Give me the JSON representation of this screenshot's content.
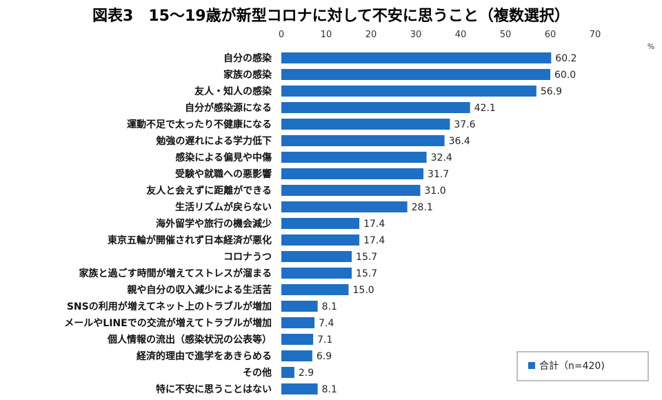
{
  "chart_data": {
    "type": "bar",
    "orientation": "horizontal",
    "title": "図表3　15〜19歳が新型コロナに対して不安に思うこと（複数選択）",
    "unit_label": "%",
    "xlim": [
      0,
      70
    ],
    "ticks": [
      0,
      10,
      20,
      30,
      40,
      50,
      60,
      70
    ],
    "grid": false,
    "legend": {
      "position": "bottom-right",
      "label": "合計（n=420)"
    },
    "bar_color": "#1f6fc4",
    "series": [
      {
        "name": "合計（n=420)",
        "values": [
          60.2,
          60.0,
          56.9,
          42.1,
          37.6,
          36.4,
          32.4,
          31.7,
          31.0,
          28.1,
          17.4,
          17.4,
          15.7,
          15.7,
          15.0,
          8.1,
          7.4,
          7.1,
          6.9,
          2.9,
          8.1
        ]
      }
    ],
    "categories": [
      "自分の感染",
      "家族の感染",
      "友人・知人の感染",
      "自分が感染源になる",
      "運動不足で太ったり不健康になる",
      "勉強の遅れによる学力低下",
      "感染による偏見や中傷",
      "受験や就職への悪影響",
      "友人と会えずに距離ができる",
      "生活リズムが戻らない",
      "海外留学や旅行の機会減少",
      "東京五輪が開催されず日本経済が悪化",
      "コロナうつ",
      "家族と過ごす時間が増えてストレスが溜まる",
      "親や自分の収入減少による生活苦",
      "SNSの利用が増えてネット上のトラブルが増加",
      "メールやLINEでの交流が増えてトラブルが増加",
      "個人情報の流出（感染状況の公表等）",
      "経済的理由で進学をあきらめる",
      "その他",
      "特に不安に思うことはない"
    ],
    "value_labels": [
      "60.2",
      "60.0",
      "56.9",
      "42.1",
      "37.6",
      "36.4",
      "32.4",
      "31.7",
      "31.0",
      "28.1",
      "17.4",
      "17.4",
      "15.7",
      "15.7",
      "15.0",
      "8.1",
      "7.4",
      "7.1",
      "6.9",
      "2.9",
      "8.1"
    ]
  }
}
